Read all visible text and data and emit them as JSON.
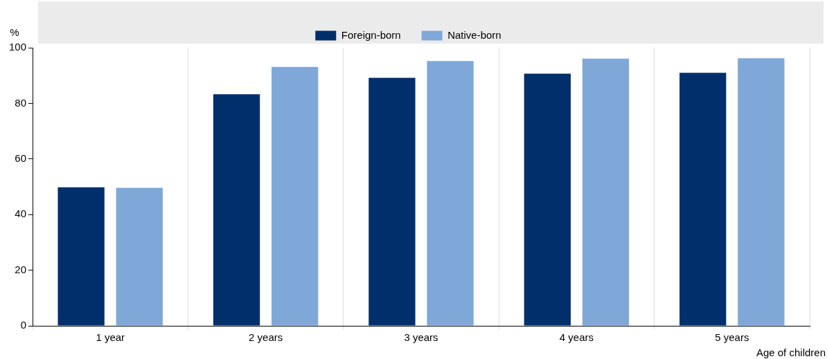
{
  "chart_data": {
    "type": "bar",
    "xlabel": "Age of children",
    "ylabel": "%",
    "categories": [
      "1 year",
      "2 years",
      "3 years",
      "4 years",
      "5 years"
    ],
    "series": [
      {
        "name": "Foreign-born",
        "color": "#002f6c",
        "values": [
          49.8,
          83.3,
          89.2,
          90.7,
          91
        ]
      },
      {
        "name": "Native-born",
        "color": "#7fa8d9",
        "values": [
          49.6,
          93.1,
          95.2,
          96.1,
          96.2
        ]
      }
    ],
    "ylim": [
      0,
      100
    ],
    "yticks": [
      0,
      20,
      40,
      60,
      80,
      100
    ],
    "grid": "x",
    "legend": "top"
  }
}
